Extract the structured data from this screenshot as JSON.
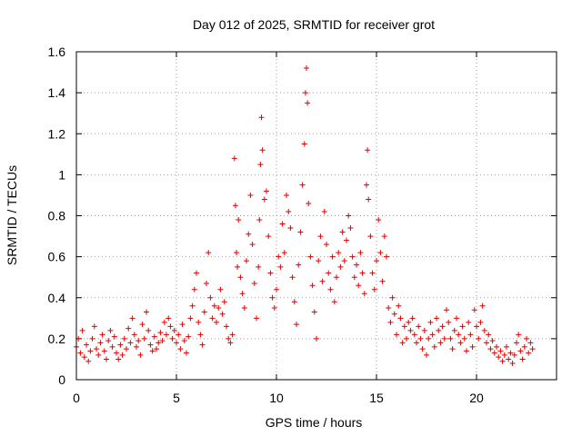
{
  "chart_data": {
    "type": "scatter",
    "title": "Day 012 of 2025, SRMTID for receiver grot",
    "xlabel": "GPS time / hours",
    "ylabel": "SRMTID / TECUs",
    "xlim": [
      0,
      24
    ],
    "ylim": [
      0,
      1.6
    ],
    "x_ticks": [
      0,
      5,
      10,
      15,
      20
    ],
    "x_tick_labels": [
      "0",
      "5",
      "10",
      "15",
      "20"
    ],
    "y_ticks": [
      0,
      0.2,
      0.4,
      0.6,
      0.8,
      1.0,
      1.2,
      1.4,
      1.6
    ],
    "y_tick_labels": [
      "0",
      "0.2",
      "0.4",
      "0.6",
      "0.8",
      "1",
      "1.2",
      "1.4",
      "1.6"
    ],
    "grid": true,
    "marker": "+",
    "color": "#e00000",
    "series": [
      {
        "name": "SRMTID",
        "points": [
          [
            0.0,
            0.16
          ],
          [
            0.1,
            0.2
          ],
          [
            0.2,
            0.13
          ],
          [
            0.3,
            0.24
          ],
          [
            0.4,
            0.11
          ],
          [
            0.5,
            0.17
          ],
          [
            0.6,
            0.09
          ],
          [
            0.7,
            0.14
          ],
          [
            0.8,
            0.2
          ],
          [
            0.9,
            0.26
          ],
          [
            1.0,
            0.15
          ],
          [
            1.1,
            0.12
          ],
          [
            1.2,
            0.18
          ],
          [
            1.3,
            0.22
          ],
          [
            1.4,
            0.14
          ],
          [
            1.5,
            0.1
          ],
          [
            1.6,
            0.19
          ],
          [
            1.7,
            0.24
          ],
          [
            1.8,
            0.16
          ],
          [
            1.9,
            0.21
          ],
          [
            2.0,
            0.13
          ],
          [
            2.1,
            0.1
          ],
          [
            2.2,
            0.17
          ],
          [
            2.3,
            0.12
          ],
          [
            2.4,
            0.2
          ],
          [
            2.5,
            0.15
          ],
          [
            2.6,
            0.25
          ],
          [
            2.7,
            0.18
          ],
          [
            2.8,
            0.3
          ],
          [
            2.9,
            0.22
          ],
          [
            3.0,
            0.16
          ],
          [
            3.1,
            0.19
          ],
          [
            3.2,
            0.12
          ],
          [
            3.3,
            0.27
          ],
          [
            3.4,
            0.2
          ],
          [
            3.5,
            0.33
          ],
          [
            3.6,
            0.24
          ],
          [
            3.7,
            0.17
          ],
          [
            3.8,
            0.14
          ],
          [
            3.9,
            0.21
          ],
          [
            4.0,
            0.15
          ],
          [
            4.1,
            0.18
          ],
          [
            4.2,
            0.23
          ],
          [
            4.3,
            0.19
          ],
          [
            4.4,
            0.28
          ],
          [
            4.5,
            0.22
          ],
          [
            4.6,
            0.3
          ],
          [
            4.7,
            0.26
          ],
          [
            4.8,
            0.2
          ],
          [
            4.9,
            0.24
          ],
          [
            5.0,
            0.18
          ],
          [
            5.1,
            0.22
          ],
          [
            5.2,
            0.15
          ],
          [
            5.3,
            0.27
          ],
          [
            5.4,
            0.19
          ],
          [
            5.5,
            0.13
          ],
          [
            5.6,
            0.21
          ],
          [
            5.7,
            0.3
          ],
          [
            5.8,
            0.36
          ],
          [
            5.9,
            0.44
          ],
          [
            6.0,
            0.52
          ],
          [
            6.1,
            0.28
          ],
          [
            6.2,
            0.22
          ],
          [
            6.3,
            0.17
          ],
          [
            6.4,
            0.33
          ],
          [
            6.5,
            0.47
          ],
          [
            6.6,
            0.62
          ],
          [
            6.7,
            0.4
          ],
          [
            6.8,
            0.3
          ],
          [
            6.9,
            0.36
          ],
          [
            7.0,
            0.28
          ],
          [
            7.1,
            0.35
          ],
          [
            7.2,
            0.44
          ],
          [
            7.3,
            0.32
          ],
          [
            7.4,
            0.38
          ],
          [
            7.5,
            0.26
          ],
          [
            7.6,
            0.2
          ],
          [
            7.7,
            0.18
          ],
          [
            7.8,
            0.22
          ],
          [
            7.9,
            1.08
          ],
          [
            7.95,
            0.85
          ],
          [
            8.0,
            0.62
          ],
          [
            8.05,
            0.55
          ],
          [
            8.1,
            0.78
          ],
          [
            8.2,
            0.5
          ],
          [
            8.3,
            0.42
          ],
          [
            8.4,
            0.35
          ],
          [
            8.5,
            0.58
          ],
          [
            8.6,
            0.71
          ],
          [
            8.7,
            0.9
          ],
          [
            8.8,
            0.66
          ],
          [
            8.9,
            0.47
          ],
          [
            9.0,
            0.3
          ],
          [
            9.1,
            0.55
          ],
          [
            9.15,
            0.78
          ],
          [
            9.2,
            1.05
          ],
          [
            9.25,
            1.28
          ],
          [
            9.3,
            1.12
          ],
          [
            9.4,
            0.88
          ],
          [
            9.5,
            0.92
          ],
          [
            9.6,
            0.7
          ],
          [
            9.7,
            0.52
          ],
          [
            9.8,
            0.4
          ],
          [
            9.9,
            0.35
          ],
          [
            10.0,
            0.44
          ],
          [
            10.1,
            0.6
          ],
          [
            10.2,
            0.55
          ],
          [
            10.3,
            0.76
          ],
          [
            10.4,
            0.62
          ],
          [
            10.5,
            0.9
          ],
          [
            10.6,
            0.82
          ],
          [
            10.7,
            0.74
          ],
          [
            10.8,
            0.5
          ],
          [
            10.9,
            0.38
          ],
          [
            11.0,
            0.27
          ],
          [
            11.1,
            0.56
          ],
          [
            11.2,
            0.72
          ],
          [
            11.3,
            0.95
          ],
          [
            11.4,
            1.15
          ],
          [
            11.45,
            1.4
          ],
          [
            11.5,
            1.52
          ],
          [
            11.55,
            1.35
          ],
          [
            11.6,
            0.86
          ],
          [
            11.7,
            0.6
          ],
          [
            11.8,
            0.46
          ],
          [
            11.9,
            0.33
          ],
          [
            12.0,
            0.2
          ],
          [
            12.1,
            0.58
          ],
          [
            12.2,
            0.7
          ],
          [
            12.3,
            0.48
          ],
          [
            12.4,
            0.82
          ],
          [
            12.5,
            0.66
          ],
          [
            12.6,
            0.52
          ],
          [
            12.7,
            0.44
          ],
          [
            12.8,
            0.6
          ],
          [
            12.9,
            0.38
          ],
          [
            13.0,
            0.5
          ],
          [
            13.1,
            0.62
          ],
          [
            13.2,
            0.55
          ],
          [
            13.3,
            0.72
          ],
          [
            13.4,
            0.58
          ],
          [
            13.5,
            0.68
          ],
          [
            13.6,
            0.8
          ],
          [
            13.7,
            0.74
          ],
          [
            13.8,
            0.6
          ],
          [
            13.9,
            0.5
          ],
          [
            14.0,
            0.56
          ],
          [
            14.1,
            0.46
          ],
          [
            14.2,
            0.62
          ],
          [
            14.3,
            0.52
          ],
          [
            14.4,
            0.42
          ],
          [
            14.5,
            0.95
          ],
          [
            14.55,
            1.12
          ],
          [
            14.6,
            0.88
          ],
          [
            14.7,
            0.7
          ],
          [
            14.8,
            0.52
          ],
          [
            14.9,
            0.44
          ],
          [
            15.0,
            0.58
          ],
          [
            15.1,
            0.78
          ],
          [
            15.2,
            0.62
          ],
          [
            15.3,
            0.48
          ],
          [
            15.4,
            0.7
          ],
          [
            15.5,
            0.6
          ],
          [
            15.6,
            0.35
          ],
          [
            15.7,
            0.28
          ],
          [
            15.8,
            0.4
          ],
          [
            15.9,
            0.32
          ],
          [
            16.0,
            0.22
          ],
          [
            16.1,
            0.36
          ],
          [
            16.2,
            0.3
          ],
          [
            16.3,
            0.18
          ],
          [
            16.4,
            0.26
          ],
          [
            16.5,
            0.2
          ],
          [
            16.6,
            0.28
          ],
          [
            16.7,
            0.24
          ],
          [
            16.8,
            0.3
          ],
          [
            16.9,
            0.22
          ],
          [
            17.0,
            0.18
          ],
          [
            17.1,
            0.26
          ],
          [
            17.2,
            0.2
          ],
          [
            17.3,
            0.15
          ],
          [
            17.4,
            0.24
          ],
          [
            17.5,
            0.12
          ],
          [
            17.6,
            0.2
          ],
          [
            17.7,
            0.28
          ],
          [
            17.8,
            0.22
          ],
          [
            17.9,
            0.16
          ],
          [
            18.0,
            0.3
          ],
          [
            18.1,
            0.24
          ],
          [
            18.2,
            0.18
          ],
          [
            18.3,
            0.26
          ],
          [
            18.4,
            0.2
          ],
          [
            18.5,
            0.34
          ],
          [
            18.6,
            0.28
          ],
          [
            18.7,
            0.2
          ],
          [
            18.8,
            0.15
          ],
          [
            18.9,
            0.24
          ],
          [
            19.0,
            0.3
          ],
          [
            19.1,
            0.22
          ],
          [
            19.2,
            0.18
          ],
          [
            19.3,
            0.26
          ],
          [
            19.4,
            0.2
          ],
          [
            19.5,
            0.14
          ],
          [
            19.6,
            0.28
          ],
          [
            19.7,
            0.22
          ],
          [
            19.8,
            0.16
          ],
          [
            19.9,
            0.34
          ],
          [
            20.0,
            0.26
          ],
          [
            20.1,
            0.2
          ],
          [
            20.2,
            0.28
          ],
          [
            20.3,
            0.36
          ],
          [
            20.4,
            0.24
          ],
          [
            20.5,
            0.18
          ],
          [
            20.6,
            0.22
          ],
          [
            20.7,
            0.15
          ],
          [
            20.8,
            0.19
          ],
          [
            20.9,
            0.13
          ],
          [
            21.0,
            0.16
          ],
          [
            21.1,
            0.11
          ],
          [
            21.2,
            0.14
          ],
          [
            21.3,
            0.09
          ],
          [
            21.4,
            0.12
          ],
          [
            21.5,
            0.16
          ],
          [
            21.6,
            0.1
          ],
          [
            21.7,
            0.13
          ],
          [
            21.8,
            0.08
          ],
          [
            21.9,
            0.12
          ],
          [
            22.0,
            0.18
          ],
          [
            22.1,
            0.22
          ],
          [
            22.2,
            0.14
          ],
          [
            22.3,
            0.1
          ],
          [
            22.4,
            0.16
          ],
          [
            22.5,
            0.2
          ],
          [
            22.6,
            0.13
          ],
          [
            22.7,
            0.18
          ],
          [
            22.8,
            0.15
          ]
        ]
      }
    ]
  }
}
